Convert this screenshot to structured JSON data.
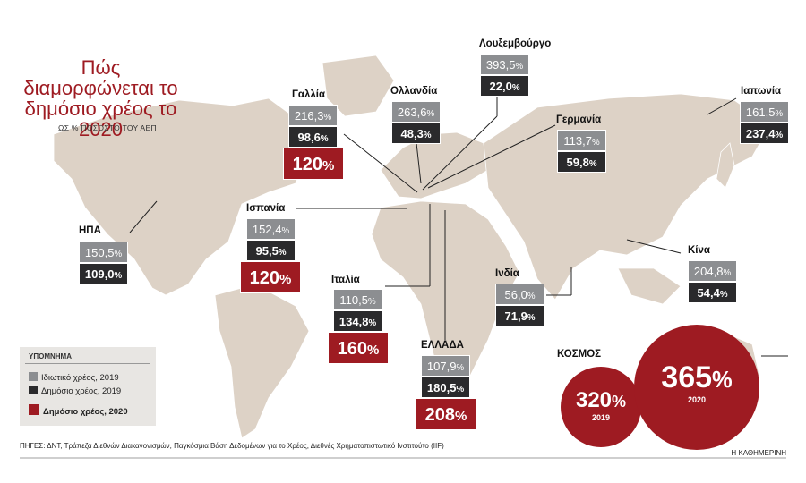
{
  "title": "Πώς διαμορφώνεται το δημόσιο χρέος το 2020",
  "subtitle": "ΩΣ % ΠΟΣΟΣΤΟ ΤΟΥ ΑΕΠ",
  "colors": {
    "private_2019": "#8c8e91",
    "public_2019": "#2a2a2c",
    "public_2020": "#9e1b22",
    "land": "#ddd2c6",
    "sea": "#ffffff"
  },
  "legend": {
    "title": "ΥΠΟΜΝΗΜΑ",
    "private_2019": "Ιδιωτικό χρέος, 2019",
    "public_2019": "Δημόσιο χρέος, 2019",
    "public_2020": "Δημόσιο χρέος, 2020"
  },
  "chart_data": {
    "type": "map",
    "units": "%",
    "series": [
      "Ιδιωτικό χρέος, 2019",
      "Δημόσιο χρέος, 2019",
      "Δημόσιο χρέος, 2020"
    ],
    "countries": [
      {
        "key": "usa",
        "name": "ΗΠΑ",
        "private_2019": "150,5",
        "public_2019": "109,0"
      },
      {
        "key": "spain",
        "name": "Ισπανία",
        "private_2019": "152,4",
        "public_2019": "95,5",
        "public_2020": "120"
      },
      {
        "key": "france",
        "name": "Γαλλία",
        "private_2019": "216,3",
        "public_2019": "98,6",
        "public_2020": "120"
      },
      {
        "key": "netherlands",
        "name": "Ολλανδία",
        "private_2019": "263,6",
        "public_2019": "48,3"
      },
      {
        "key": "luxembourg",
        "name": "Λουξεμβούργο",
        "private_2019": "393,5",
        "public_2019": "22,0"
      },
      {
        "key": "germany",
        "name": "Γερμανία",
        "private_2019": "113,7",
        "public_2019": "59,8"
      },
      {
        "key": "japan",
        "name": "Ιαπωνία",
        "private_2019": "161,5",
        "public_2019": "237,4"
      },
      {
        "key": "italy",
        "name": "Ιταλία",
        "private_2019": "110,5",
        "public_2019": "134,8",
        "public_2020": "160"
      },
      {
        "key": "greece",
        "name": "ΕΛΛΑΔΑ",
        "private_2019": "107,9",
        "public_2019": "180,5",
        "public_2020": "208"
      },
      {
        "key": "india",
        "name": "Ινδία",
        "private_2019": "56,0",
        "public_2019": "71,9"
      },
      {
        "key": "china",
        "name": "Κίνα",
        "private_2019": "204,8",
        "public_2019": "54,4"
      }
    ],
    "world": {
      "label": "ΚΟΣΜΟΣ",
      "values": [
        {
          "year": "2019",
          "value": "320"
        },
        {
          "year": "2020",
          "value": "365"
        }
      ]
    }
  },
  "sources": "ΠΗΓΕΣ: ΔΝΤ, Τράπεζα Διεθνών Διακανονισμών, Παγκόσμια Βάση Δεδομένων για το Χρέος, Διεθνές Χρηματοπιστωτικό Ινστιτούτο (IIF)",
  "brand": "Η ΚΑΘΗΜΕΡΙΝΗ"
}
